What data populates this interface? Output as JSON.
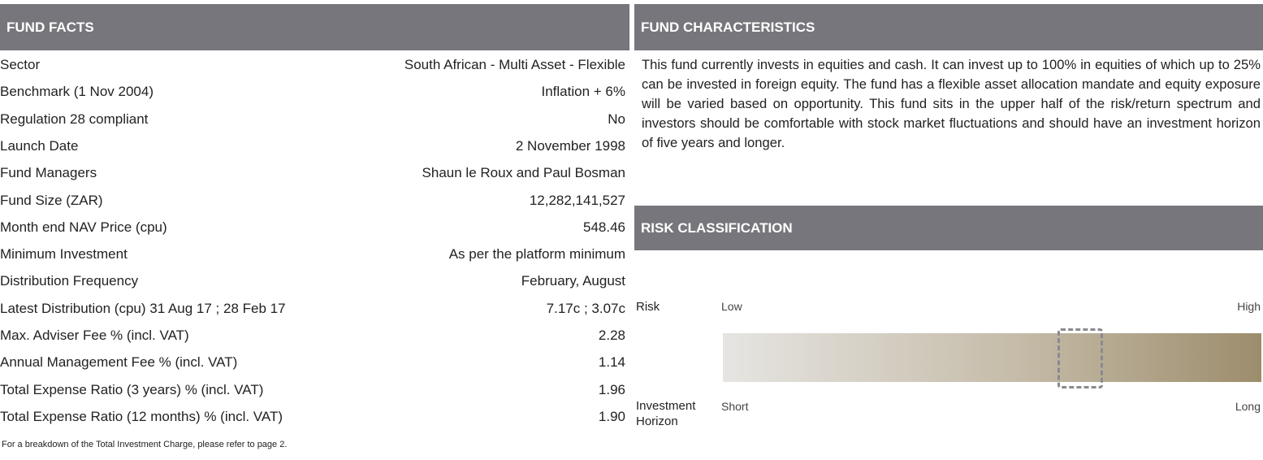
{
  "fund_facts": {
    "title": "FUND FACTS",
    "rows": [
      [
        "Sector",
        "South African - Multi Asset - Flexible"
      ],
      [
        "Benchmark (1 Nov 2004)",
        "Inflation + 6%"
      ],
      [
        "Regulation 28 compliant",
        "No"
      ],
      [
        "Launch Date",
        "2 November 1998"
      ],
      [
        "Fund Managers",
        "Shaun le Roux and Paul Bosman"
      ],
      [
        "Fund Size (ZAR)",
        "12,282,141,527"
      ],
      [
        "Month end NAV Price (cpu)",
        "548.46"
      ],
      [
        "Minimum Investment",
        "As per the platform minimum"
      ],
      [
        "Distribution Frequency",
        "February, August"
      ],
      [
        "Latest Distribution (cpu)  31 Aug 17 ; 28 Feb 17",
        "7.17c ; 3.07c"
      ],
      [
        "Max. Adviser Fee % (incl. VAT)",
        "2.28"
      ],
      [
        "Annual Management Fee % (incl. VAT)",
        "1.14"
      ],
      [
        "Total Expense Ratio  (3 years) % (incl. VAT)",
        "1.96"
      ],
      [
        "Total Expense Ratio (12 months) % (incl. VAT)",
        "1.90"
      ]
    ],
    "note": "For a breakdown of the Total Investment Charge, please refer to page 2."
  },
  "fund_characteristics": {
    "title": "FUND CHARACTERISTICS",
    "text": "This fund currently invests in equities and cash. It can invest up to 100% in equities of which up to 25% can be invested in foreign equity. The fund has a flexible asset allocation mandate and equity exposure will be varied based on opportunity. This fund sits in the upper half of the risk/return spectrum and investors should be comfortable with stock market fluctuations and should have an investment horizon of five years and longer."
  },
  "risk_classification": {
    "title": "RISK CLASSIFICATION",
    "risk_label": "Risk",
    "low": "Low",
    "high": "High",
    "horizon_label": "Investment Horizon",
    "short": "Short",
    "long": "Long"
  }
}
